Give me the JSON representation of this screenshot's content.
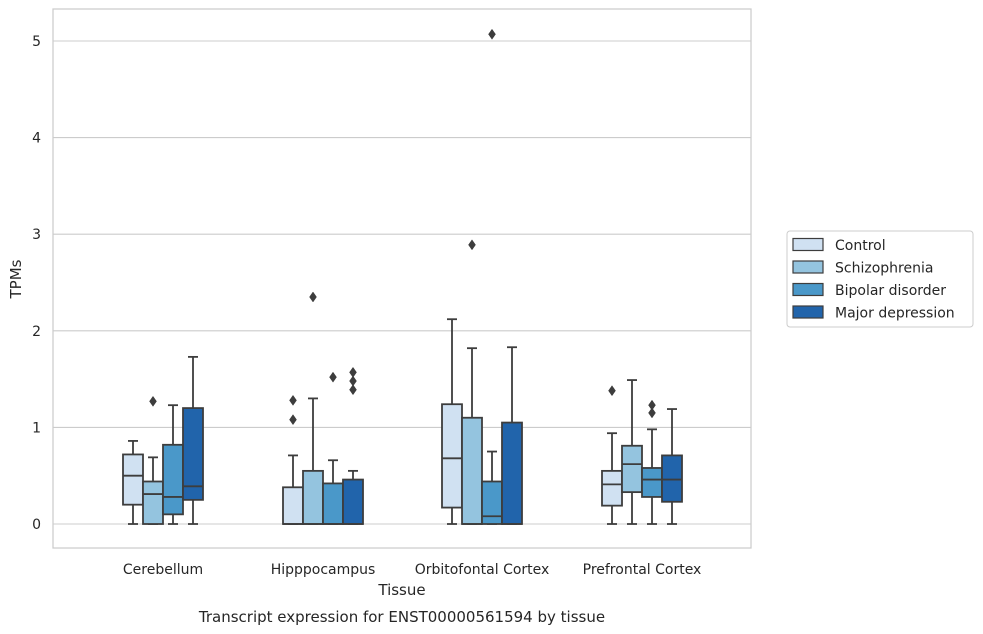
{
  "caption": "Transcript expression for ENST00000561594 by tissue",
  "chart_data": {
    "type": "box",
    "xlabel": "Tissue",
    "ylabel": "TPMs",
    "ylim": [
      -0.25,
      5.33
    ],
    "yticks": [
      0,
      1,
      2,
      3,
      4,
      5
    ],
    "grid": "horizontal",
    "legend_position": "right",
    "categories": [
      "Cerebellum",
      "Hipppocampus",
      "Orbitofontal Cortex",
      "Prefrontal Cortex"
    ],
    "series": [
      {
        "name": "Control",
        "color": "#d0e1f2",
        "boxes": [
          {
            "whisker_low": 0.0,
            "q1": 0.2,
            "median": 0.5,
            "q3": 0.72,
            "whisker_high": 0.86,
            "outliers": []
          },
          {
            "whisker_low": 0.0,
            "q1": 0.0,
            "median": 0.0,
            "q3": 0.38,
            "whisker_high": 0.71,
            "outliers": [
              1.08,
              1.28
            ]
          },
          {
            "whisker_low": 0.0,
            "q1": 0.17,
            "median": 0.68,
            "q3": 1.24,
            "whisker_high": 2.12,
            "outliers": []
          },
          {
            "whisker_low": 0.0,
            "q1": 0.19,
            "median": 0.41,
            "q3": 0.55,
            "whisker_high": 0.94,
            "outliers": [
              1.38
            ]
          }
        ]
      },
      {
        "name": "Schizophrenia",
        "color": "#94c4df",
        "boxes": [
          {
            "whisker_low": 0.0,
            "q1": 0.0,
            "median": 0.31,
            "q3": 0.44,
            "whisker_high": 0.69,
            "outliers": [
              1.27
            ]
          },
          {
            "whisker_low": 0.0,
            "q1": 0.0,
            "median": 0.0,
            "q3": 0.55,
            "whisker_high": 1.3,
            "outliers": [
              2.35
            ]
          },
          {
            "whisker_low": 0.0,
            "q1": 0.0,
            "median": 0.0,
            "q3": 1.1,
            "whisker_high": 1.82,
            "outliers": [
              2.89
            ]
          },
          {
            "whisker_low": 0.0,
            "q1": 0.33,
            "median": 0.62,
            "q3": 0.81,
            "whisker_high": 1.49,
            "outliers": []
          }
        ]
      },
      {
        "name": "Bipolar disorder",
        "color": "#4a98c9",
        "boxes": [
          {
            "whisker_low": 0.0,
            "q1": 0.1,
            "median": 0.28,
            "q3": 0.82,
            "whisker_high": 1.23,
            "outliers": []
          },
          {
            "whisker_low": 0.0,
            "q1": 0.0,
            "median": 0.0,
            "q3": 0.42,
            "whisker_high": 0.66,
            "outliers": [
              1.52
            ]
          },
          {
            "whisker_low": 0.0,
            "q1": 0.0,
            "median": 0.08,
            "q3": 0.44,
            "whisker_high": 0.75,
            "outliers": [
              5.07
            ]
          },
          {
            "whisker_low": 0.0,
            "q1": 0.28,
            "median": 0.46,
            "q3": 0.58,
            "whisker_high": 0.98,
            "outliers": [
              1.15,
              1.23
            ]
          }
        ]
      },
      {
        "name": "Major depression",
        "color": "#2164ab",
        "boxes": [
          {
            "whisker_low": 0.0,
            "q1": 0.25,
            "median": 0.39,
            "q3": 1.2,
            "whisker_high": 1.73,
            "outliers": []
          },
          {
            "whisker_low": 0.0,
            "q1": 0.0,
            "median": 0.0,
            "q3": 0.46,
            "whisker_high": 0.55,
            "outliers": [
              1.39,
              1.48,
              1.57
            ]
          },
          {
            "whisker_low": 0.0,
            "q1": 0.0,
            "median": 0.0,
            "q3": 1.05,
            "whisker_high": 1.83,
            "outliers": []
          },
          {
            "whisker_low": 0.0,
            "q1": 0.23,
            "median": 0.46,
            "q3": 0.71,
            "whisker_high": 1.19,
            "outliers": []
          }
        ]
      }
    ]
  }
}
